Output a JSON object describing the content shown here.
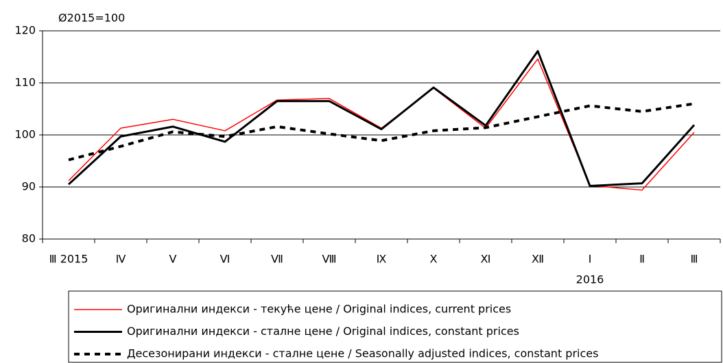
{
  "chart_data": {
    "type": "line",
    "annotation": "Ø2015=100",
    "categories": [
      "Ⅲ 2015",
      "Ⅳ",
      "Ⅴ",
      "Ⅵ",
      "Ⅶ",
      "Ⅷ",
      "Ⅸ",
      "Ⅹ",
      "Ⅺ",
      "Ⅻ",
      "Ⅰ",
      "Ⅱ",
      "Ⅲ"
    ],
    "year_label": "2016",
    "series": [
      {
        "name": "Оригинални индекси - текуће цене / Original indices, current prices",
        "color": "#ff0000",
        "dashed": false,
        "values": [
          91.2,
          101.3,
          103.0,
          100.8,
          106.7,
          107.0,
          101.3,
          109.0,
          101.3,
          114.6,
          90.3,
          89.4,
          100.5
        ]
      },
      {
        "name": "Оригинални индекси - сталне цене / Original indices, constant prices",
        "color": "#000000",
        "dashed": false,
        "values": [
          90.5,
          99.7,
          101.6,
          98.7,
          106.5,
          106.5,
          101.1,
          109.1,
          101.8,
          116.1,
          90.2,
          90.7,
          101.9
        ]
      },
      {
        "name": "Десезонирани индекси - сталне цене / Seasonally adjusted indices, constant prices",
        "color": "#000000",
        "dashed": true,
        "values": [
          95.2,
          97.8,
          100.6,
          99.7,
          101.6,
          100.2,
          98.9,
          100.8,
          101.4,
          103.5,
          105.6,
          104.5,
          106.0
        ]
      }
    ],
    "ylim": [
      80,
      120
    ],
    "yticks": [
      80,
      90,
      100,
      110,
      120
    ],
    "grid": true
  }
}
